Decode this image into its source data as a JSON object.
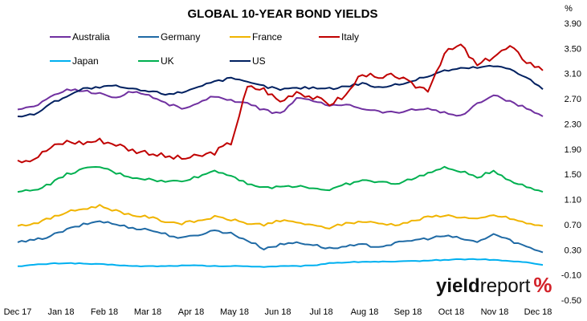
{
  "chart_data": {
    "type": "line",
    "title": "GLOBAL 10-YEAR BOND YIELDS",
    "unit_label": "%",
    "xlabel": "",
    "ylabel": "",
    "ylim": [
      -0.5,
      3.9
    ],
    "y_ticks": [
      "3.90",
      "3.50",
      "3.10",
      "2.70",
      "2.30",
      "1.90",
      "1.50",
      "1.10",
      "0.70",
      "0.30",
      "-0.10",
      "-0.50"
    ],
    "x_ticks": [
      "Dec 17",
      "Jan 18",
      "Feb 18",
      "Mar 18",
      "Apr 18",
      "May 18",
      "Jun 18",
      "Jul 18",
      "Aug 18",
      "Sep 18",
      "Oct 18",
      "Nov 18",
      "Dec 18"
    ],
    "legend_position": "top-left",
    "grid": false,
    "series": [
      {
        "name": "Australia",
        "color": "#7030a0",
        "values": [
          2.53,
          2.58,
          2.72,
          2.85,
          2.83,
          2.78,
          2.72,
          2.82,
          2.76,
          2.63,
          2.55,
          2.62,
          2.75,
          2.68,
          2.62,
          2.52,
          2.46,
          2.7,
          2.68,
          2.58,
          2.62,
          2.55,
          2.5,
          2.48,
          2.52,
          2.55,
          2.48,
          2.42,
          2.62,
          2.76,
          2.65,
          2.55,
          2.42
        ]
      },
      {
        "name": "Germany",
        "color": "#1f6aa5",
        "values": [
          0.42,
          0.45,
          0.52,
          0.62,
          0.7,
          0.76,
          0.7,
          0.65,
          0.62,
          0.55,
          0.48,
          0.54,
          0.61,
          0.56,
          0.45,
          0.32,
          0.38,
          0.42,
          0.38,
          0.32,
          0.35,
          0.38,
          0.35,
          0.4,
          0.45,
          0.48,
          0.52,
          0.48,
          0.42,
          0.55,
          0.45,
          0.35,
          0.26
        ]
      },
      {
        "name": "France",
        "color": "#f0b400",
        "values": [
          0.68,
          0.72,
          0.8,
          0.9,
          0.95,
          1.0,
          0.92,
          0.85,
          0.82,
          0.75,
          0.72,
          0.76,
          0.82,
          0.78,
          0.72,
          0.7,
          0.76,
          0.74,
          0.68,
          0.65,
          0.72,
          0.75,
          0.72,
          0.7,
          0.75,
          0.82,
          0.85,
          0.82,
          0.78,
          0.85,
          0.8,
          0.72,
          0.68
        ]
      },
      {
        "name": "Italy",
        "color": "#c00000",
        "values": [
          1.72,
          1.75,
          1.92,
          2.02,
          2.0,
          2.04,
          1.98,
          1.88,
          1.85,
          1.78,
          1.75,
          1.78,
          1.85,
          2.0,
          2.88,
          2.85,
          2.65,
          2.82,
          2.72,
          2.62,
          2.75,
          3.12,
          3.0,
          3.08,
          2.92,
          2.85,
          3.42,
          3.55,
          3.22,
          3.38,
          3.52,
          3.3,
          3.15
        ]
      },
      {
        "name": "Japan",
        "color": "#00b0f0",
        "values": [
          0.04,
          0.06,
          0.08,
          0.09,
          0.08,
          0.07,
          0.06,
          0.04,
          0.04,
          0.04,
          0.05,
          0.05,
          0.04,
          0.04,
          0.04,
          0.03,
          0.04,
          0.04,
          0.05,
          0.09,
          0.1,
          0.11,
          0.11,
          0.11,
          0.12,
          0.13,
          0.14,
          0.15,
          0.15,
          0.14,
          0.12,
          0.1,
          0.06
        ]
      },
      {
        "name": "UK",
        "color": "#00b050",
        "values": [
          1.22,
          1.25,
          1.35,
          1.5,
          1.58,
          1.62,
          1.52,
          1.45,
          1.42,
          1.38,
          1.4,
          1.46,
          1.56,
          1.48,
          1.36,
          1.28,
          1.3,
          1.32,
          1.28,
          1.25,
          1.34,
          1.4,
          1.38,
          1.35,
          1.42,
          1.52,
          1.6,
          1.55,
          1.45,
          1.56,
          1.4,
          1.3,
          1.22
        ]
      },
      {
        "name": "US",
        "color": "#002060",
        "values": [
          2.42,
          2.45,
          2.62,
          2.75,
          2.86,
          2.88,
          2.9,
          2.85,
          2.82,
          2.78,
          2.8,
          2.9,
          2.98,
          3.02,
          2.96,
          2.9,
          2.85,
          2.87,
          2.88,
          2.86,
          2.9,
          2.95,
          2.88,
          2.92,
          2.98,
          3.06,
          3.15,
          3.18,
          3.2,
          3.22,
          3.18,
          3.05,
          2.85
        ]
      }
    ]
  },
  "branding": {
    "logo_part1": "yield",
    "logo_part2": "report",
    "logo_part3": "%"
  }
}
